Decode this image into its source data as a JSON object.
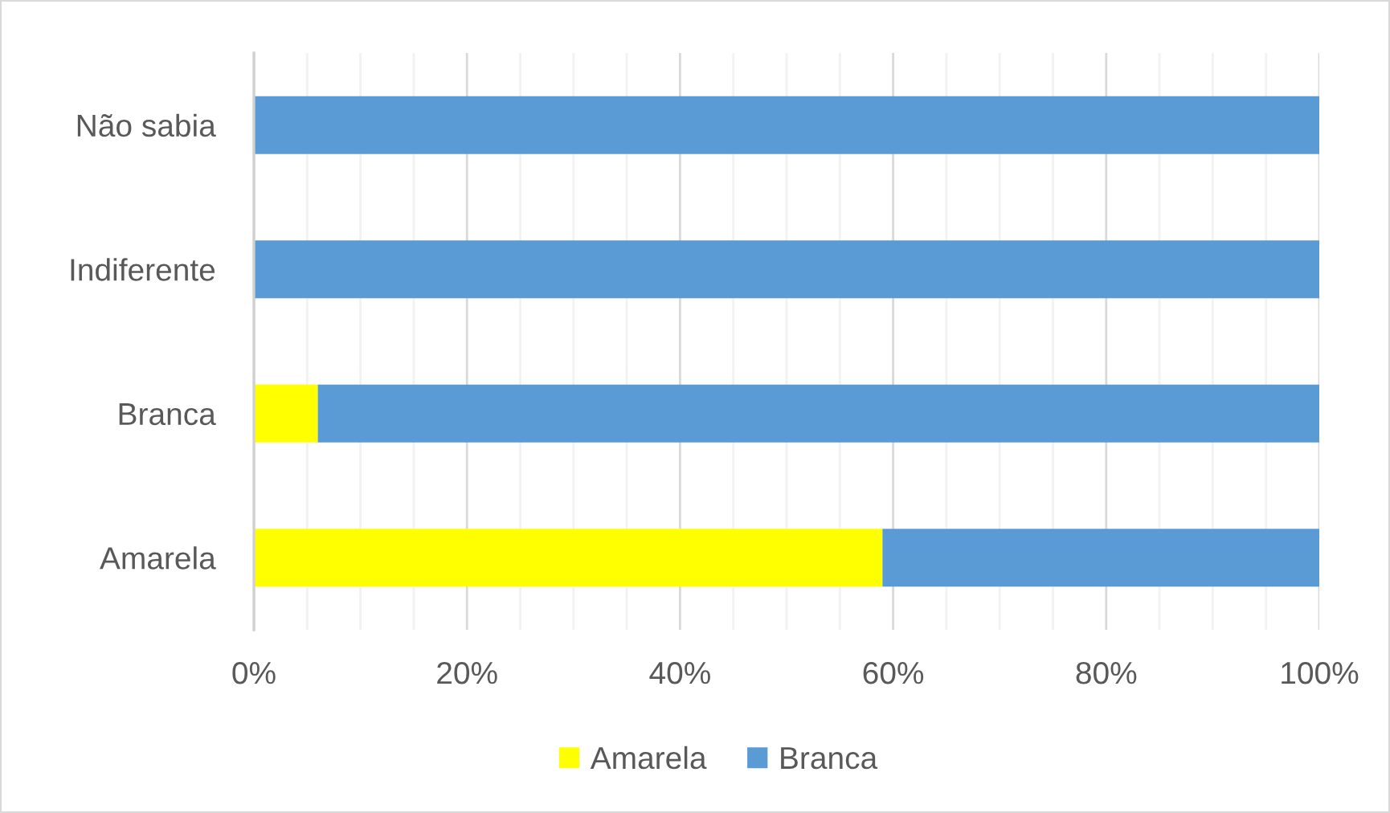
{
  "chart_data": {
    "type": "bar",
    "orientation": "horizontal",
    "stacked": true,
    "categories": [
      "Não sabia",
      "Indiferente",
      "Branca",
      "Amarela"
    ],
    "series": [
      {
        "name": "Amarela",
        "color": "#ffff00",
        "values": [
          0,
          0,
          6,
          59
        ]
      },
      {
        "name": "Branca",
        "color": "#5b9bd5",
        "values": [
          100,
          100,
          94,
          41
        ]
      }
    ],
    "xlim": [
      0,
      100
    ],
    "xticks": [
      {
        "value": 0,
        "label": "0%"
      },
      {
        "value": 5,
        "label": null
      },
      {
        "value": 10,
        "label": null
      },
      {
        "value": 15,
        "label": null
      },
      {
        "value": 20,
        "label": "20%"
      },
      {
        "value": 25,
        "label": null
      },
      {
        "value": 30,
        "label": null
      },
      {
        "value": 35,
        "label": null
      },
      {
        "value": 40,
        "label": "40%"
      },
      {
        "value": 45,
        "label": null
      },
      {
        "value": 50,
        "label": null
      },
      {
        "value": 55,
        "label": null
      },
      {
        "value": 60,
        "label": "60%"
      },
      {
        "value": 65,
        "label": null
      },
      {
        "value": 70,
        "label": null
      },
      {
        "value": 75,
        "label": null
      },
      {
        "value": 80,
        "label": "80%"
      },
      {
        "value": 85,
        "label": null
      },
      {
        "value": 90,
        "label": null
      },
      {
        "value": 95,
        "label": null
      },
      {
        "value": 100,
        "label": "100%"
      }
    ],
    "grid": "x",
    "legend": "bottom"
  }
}
